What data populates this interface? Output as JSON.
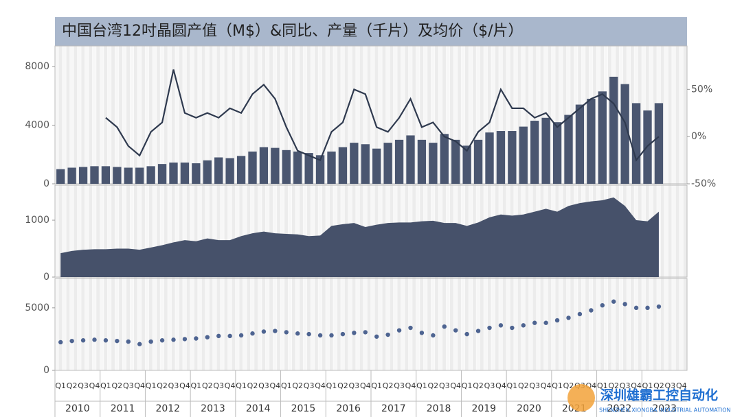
{
  "chart_data": [
    {
      "type": "bar",
      "title": "中国台湾12吋晶圆产值（M$）&同比、产量（千片）及均价（$/片）",
      "series": [
        {
          "type": "bar",
          "color": "#4a5670",
          "values": [
            1000,
            1100,
            1150,
            1200,
            1200,
            1150,
            1100,
            1100,
            1200,
            1350,
            1450,
            1450,
            1400,
            1600,
            1800,
            1750,
            1900,
            2200,
            2500,
            2450,
            2300,
            2200,
            2100,
            1950,
            2200,
            2500,
            2800,
            2700,
            2400,
            2800,
            3000,
            3300,
            3000,
            2800,
            3400,
            3000,
            2600,
            3000,
            3500,
            3600,
            3600,
            3900,
            4300,
            4500,
            4200,
            4700,
            5400,
            5800,
            6300,
            7300,
            6800,
            5500,
            5000,
            5500,
            null,
            null
          ]
        },
        {
          "type": "line",
          "axis": "y2",
          "color": "#2f3a4f",
          "values": [
            null,
            null,
            null,
            null,
            20,
            10,
            -10,
            -20,
            5,
            15,
            71,
            25,
            20,
            25,
            20,
            30,
            25,
            45,
            55,
            40,
            10,
            -15,
            -20,
            -25,
            5,
            15,
            50,
            45,
            10,
            5,
            20,
            40,
            10,
            15,
            0,
            -5,
            -15,
            5,
            15,
            50,
            30,
            30,
            20,
            25,
            10,
            20,
            30,
            40,
            45,
            35,
            15,
            -25,
            -10,
            0,
            null,
            null
          ]
        }
      ],
      "ylim": [
        0,
        9400
      ],
      "yticks": [
        0,
        4000,
        8000
      ],
      "y2lim": [
        -50,
        96
      ],
      "y2ticks": [
        {
          "value": -50,
          "label": "-50%"
        },
        {
          "value": 0,
          "label": "0%"
        },
        {
          "value": 50,
          "label": "50%"
        }
      ]
    },
    {
      "type": "area",
      "color": "#46516a",
      "values": [
        420,
        460,
        480,
        490,
        490,
        500,
        500,
        480,
        520,
        560,
        610,
        650,
        630,
        680,
        650,
        650,
        720,
        770,
        800,
        770,
        760,
        750,
        720,
        730,
        900,
        930,
        950,
        880,
        920,
        950,
        960,
        960,
        980,
        990,
        950,
        950,
        900,
        960,
        1050,
        1100,
        1080,
        1100,
        1150,
        1200,
        1150,
        1250,
        1300,
        1330,
        1350,
        1400,
        1250,
        1000,
        980,
        1150,
        null,
        null
      ],
      "ylim": [
        0,
        1615
      ],
      "yticks": [
        0,
        1000
      ]
    },
    {
      "type": "scatter",
      "color": "#4e6491",
      "values": [
        2250,
        2350,
        2400,
        2450,
        2400,
        2350,
        2300,
        2100,
        2300,
        2400,
        2450,
        2500,
        2550,
        2650,
        2750,
        2750,
        2800,
        2950,
        3100,
        3150,
        3050,
        2950,
        2900,
        2800,
        2800,
        2900,
        3000,
        3050,
        2700,
        2850,
        3200,
        3400,
        3000,
        2800,
        3500,
        3200,
        2900,
        3150,
        3400,
        3600,
        3400,
        3600,
        3800,
        3800,
        4000,
        4200,
        4500,
        4800,
        5200,
        5500,
        5300,
        5000,
        5000,
        5100,
        null,
        null
      ],
      "ylim": [
        0,
        7350
      ],
      "yticks": [
        0,
        5000
      ],
      "categories": [
        "Q1",
        "Q2",
        "Q3",
        "Q4",
        "Q1",
        "Q2",
        "Q3",
        "Q4",
        "Q1",
        "Q2",
        "Q3",
        "Q4",
        "Q1",
        "Q2",
        "Q3",
        "Q4",
        "Q1",
        "Q2",
        "Q3",
        "Q4",
        "Q1",
        "Q2",
        "Q3",
        "Q4",
        "Q1",
        "Q2",
        "Q3",
        "Q4",
        "Q1",
        "Q2",
        "Q3",
        "Q4",
        "Q1",
        "Q2",
        "Q3",
        "Q4",
        "Q1",
        "Q2",
        "Q3",
        "Q4",
        "Q1",
        "Q2",
        "Q3",
        "Q4",
        "Q1",
        "Q2",
        "Q3",
        "Q4",
        "Q1",
        "Q2",
        "Q3",
        "Q4",
        "Q1",
        "Q2",
        "Q3",
        "Q4"
      ],
      "years": [
        "2010",
        "2011",
        "2012",
        "2013",
        "2014",
        "2015",
        "2016",
        "2017",
        "2018",
        "2019",
        "2020",
        "2021",
        "2022",
        "2023"
      ]
    }
  ],
  "watermark": {
    "name": "深圳雄霸工控自动化",
    "subtitle": "SHENZHEN XIONGBA INDUSTRIAL AUTOMATION"
  }
}
